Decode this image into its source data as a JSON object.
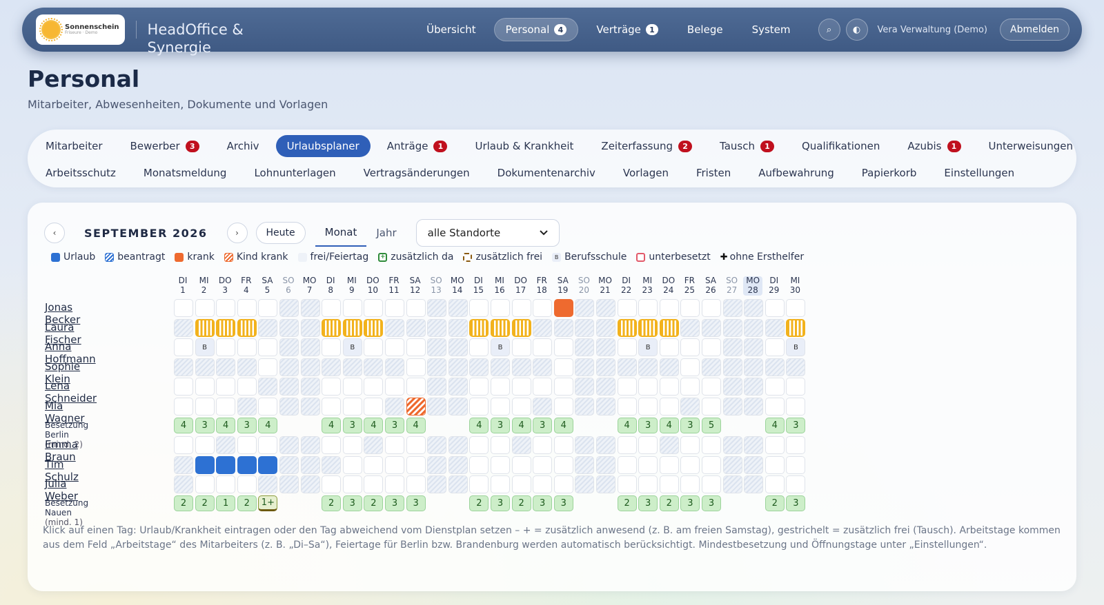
{
  "header": {
    "logo_name": "Sonnenschein",
    "logo_sub": "Friseure · Demo",
    "brand": "HeadOffice & Synergie",
    "nav": [
      {
        "label": "Übersicht",
        "badge": ""
      },
      {
        "label": "Personal",
        "badge": "4",
        "active": true
      },
      {
        "label": "Verträge",
        "badge": "1"
      },
      {
        "label": "Belege",
        "badge": ""
      },
      {
        "label": "System",
        "badge": ""
      }
    ],
    "search_icon": "⌕",
    "theme_icon": "◐",
    "user": "Vera Verwaltung (Demo)",
    "logout": "Abmelden"
  },
  "page": {
    "title": "Personal",
    "subtitle": "Mitarbeiter, Abwesenheiten, Dokumente und Vorlagen"
  },
  "tabs_row1": [
    {
      "label": "Mitarbeiter",
      "badge": ""
    },
    {
      "label": "Bewerber",
      "badge": "3"
    },
    {
      "label": "Archiv",
      "badge": ""
    },
    {
      "label": "Urlaubsplaner",
      "badge": "",
      "active": true
    },
    {
      "label": "Anträge",
      "badge": "1"
    },
    {
      "label": "Urlaub & Krankheit",
      "badge": ""
    },
    {
      "label": "Zeiterfassung",
      "badge": "2"
    },
    {
      "label": "Tausch",
      "badge": "1"
    },
    {
      "label": "Qualifikationen",
      "badge": ""
    },
    {
      "label": "Azubis",
      "badge": "1"
    },
    {
      "label": "Unterweisungen",
      "badge": ""
    }
  ],
  "tabs_row2": [
    {
      "label": "Arbeitsschutz"
    },
    {
      "label": "Monatsmeldung"
    },
    {
      "label": "Lohnunterlagen"
    },
    {
      "label": "Vertragsänderungen"
    },
    {
      "label": "Dokumentenarchiv"
    },
    {
      "label": "Vorlagen"
    },
    {
      "label": "Fristen"
    },
    {
      "label": "Aufbewahrung"
    },
    {
      "label": "Papierkorb"
    },
    {
      "label": "Einstellungen"
    }
  ],
  "planner": {
    "prev": "‹",
    "next": "›",
    "month_label": "SEPTEMBER 2026",
    "today_label": "Heute",
    "view_month": "Monat",
    "view_year": "Jahr",
    "location": "alle Standorte",
    "legend": [
      {
        "label": "Urlaub",
        "kind": "U"
      },
      {
        "label": "beantragt",
        "kind": "req"
      },
      {
        "label": "krank",
        "kind": "K"
      },
      {
        "label": "Kind krank",
        "kind": "KK"
      },
      {
        "label": "frei/Feiertag",
        "kind": "free"
      },
      {
        "label": "zusätzlich da",
        "kind": "plus"
      },
      {
        "label": "zusätzlich frei",
        "kind": "dash"
      },
      {
        "label": "Berufsschule",
        "kind": "B"
      },
      {
        "label": "unterbesetzt",
        "kind": "under"
      },
      {
        "label": "ohne Ersthelfer",
        "kind": "cross"
      }
    ],
    "days": [
      {
        "wd": "DI",
        "d": "1"
      },
      {
        "wd": "MI",
        "d": "2"
      },
      {
        "wd": "DO",
        "d": "3"
      },
      {
        "wd": "FR",
        "d": "4"
      },
      {
        "wd": "SA",
        "d": "5"
      },
      {
        "wd": "SO",
        "d": "6"
      },
      {
        "wd": "MO",
        "d": "7"
      },
      {
        "wd": "DI",
        "d": "8"
      },
      {
        "wd": "MI",
        "d": "9"
      },
      {
        "wd": "DO",
        "d": "10"
      },
      {
        "wd": "FR",
        "d": "11"
      },
      {
        "wd": "SA",
        "d": "12"
      },
      {
        "wd": "SO",
        "d": "13"
      },
      {
        "wd": "MO",
        "d": "14"
      },
      {
        "wd": "DI",
        "d": "15"
      },
      {
        "wd": "MI",
        "d": "16"
      },
      {
        "wd": "DO",
        "d": "17"
      },
      {
        "wd": "FR",
        "d": "18"
      },
      {
        "wd": "SA",
        "d": "19"
      },
      {
        "wd": "SO",
        "d": "20"
      },
      {
        "wd": "MO",
        "d": "21"
      },
      {
        "wd": "DI",
        "d": "22"
      },
      {
        "wd": "MI",
        "d": "23"
      },
      {
        "wd": "DO",
        "d": "24"
      },
      {
        "wd": "FR",
        "d": "25"
      },
      {
        "wd": "SA",
        "d": "26"
      },
      {
        "wd": "SO",
        "d": "27"
      },
      {
        "wd": "MO",
        "d": "28"
      },
      {
        "wd": "DI",
        "d": "29"
      },
      {
        "wd": "MI",
        "d": "30"
      }
    ],
    "today_index": 27,
    "groups": [
      {
        "label": "Besetzung Berlin",
        "min": "(mind. 2)",
        "employees": [
          {
            "name": "Jonas Becker",
            "cells": "wwwwwhhwwwwwhhwwwwKhhwwwwwhhww"
          },
          {
            "name": "Laura Fischer",
            "cells": "hZZZhhhZZZhhhhZZZhhhhZZZhhhhhZ"
          },
          {
            "name": "Anna Hoffmann",
            "cells": "wBwwwhhwBwwwhhwBwwwhhwBwwwhhwB"
          },
          {
            "name": "Sophie Klein",
            "cells": "hhhhwhhhhhhwhhhhhhwhhhhhwhhhhh"
          },
          {
            "name": "Lena Schneider",
            "cells": "wwwwhhhwwwwwhhwwwwwhhwwwwwhhww"
          },
          {
            "name": "Mia Wagner",
            "cells": "wwwhwhhwwwhXhhwwwhwhhwwwhwhhww"
          }
        ],
        "occupancy": [
          "4",
          "3",
          "4",
          "3",
          "4",
          "",
          "",
          "4",
          "3",
          "4",
          "3",
          "4",
          "",
          "",
          "4",
          "3",
          "4",
          "3",
          "4",
          "",
          "",
          "4",
          "3",
          "4",
          "3",
          "5",
          "",
          "",
          "4",
          "3"
        ]
      },
      {
        "label": "Besetzung Nauen",
        "min": "(mind. 1)",
        "employees": [
          {
            "name": "Emma Braun",
            "cells": "wwhwwhhwwhwwhhwwhwwhhwwhwwhhww"
          },
          {
            "name": "Tim Schulz",
            "cells": "hUUUUhhhwwwwhhwwwwwhhwwwwwhhww"
          },
          {
            "name": "Julia Weber",
            "cells": "hwwwhhhwwwwwhhwwwwwhhwwwwwhhww"
          }
        ],
        "occupancy": [
          "2",
          "2",
          "1",
          "2",
          "1+",
          "",
          "",
          "2",
          "3",
          "2",
          "3",
          "3",
          "",
          "",
          "2",
          "3",
          "2",
          "3",
          "3",
          "",
          "",
          "2",
          "3",
          "2",
          "3",
          "3",
          "",
          "",
          "2",
          "3"
        ]
      }
    ],
    "footnote": "Klick auf einen Tag: Urlaub/Krankheit eintragen oder den Tag abweichend vom Dienstplan setzen – + = zusätzlich anwesend (z. B. am freien Samstag), gestrichelt = zusätzlich frei (Tausch). Arbeitstage kommen aus dem Feld „Arbeitstage“ des Mitarbeiters (z. B. „Di–Sa“), Feiertage für Berlin bzw. Brandenburg werden automatisch berücksichtigt. Mindestbesetzung und Öffnungstage unter „Einstellungen“."
  },
  "colors": {
    "accent": "#2f5fb8",
    "urlaub": "#2d71d3",
    "krank": "#ee6a2f",
    "zusaetzlich": "#f2b21c",
    "badge": "#c0101e"
  }
}
